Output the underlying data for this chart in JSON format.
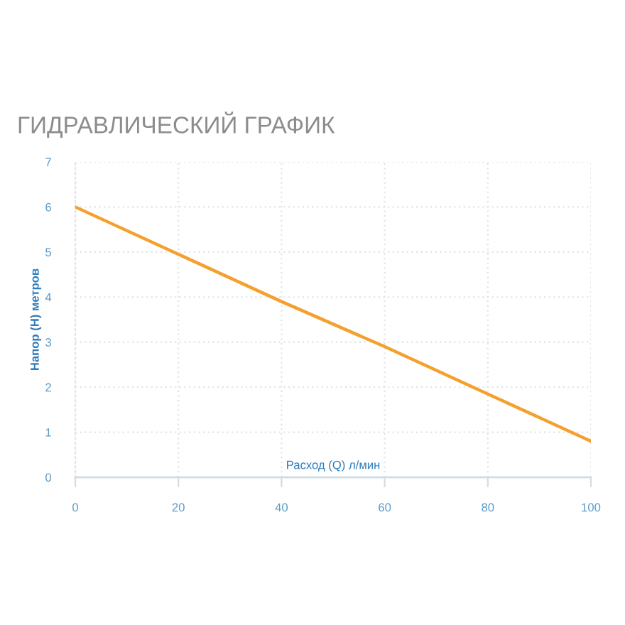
{
  "chart_data": {
    "type": "line",
    "title": "ГИДРАВЛИЧЕСКИЙ ГРАФИК",
    "xlabel": "Расход (Q) л/мин",
    "ylabel": "Напор (H) метров",
    "x": [
      0,
      20,
      40,
      60,
      80,
      100
    ],
    "values": [
      6,
      4.95,
      3.9,
      2.9,
      1.85,
      0.8
    ],
    "color": "#f5a02c",
    "xlim": [
      0,
      100
    ],
    "ylim": [
      0,
      7
    ],
    "xticks": [
      0,
      20,
      40,
      60,
      80,
      100
    ],
    "yticks": [
      0,
      1,
      2,
      3,
      4,
      5,
      6,
      7
    ],
    "grid": true
  }
}
